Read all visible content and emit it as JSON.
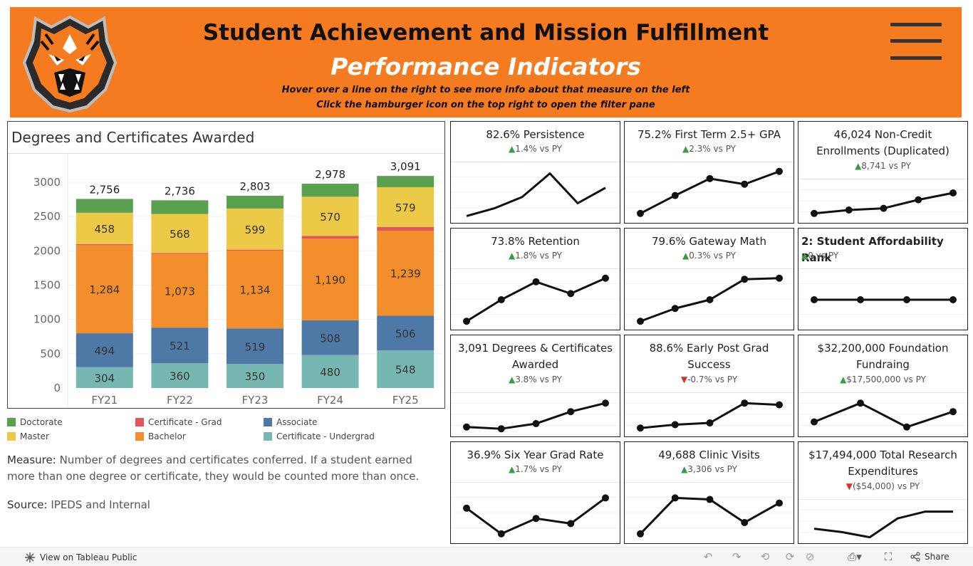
{
  "header": {
    "title": "Student Achievement and Mission Fulfillment",
    "subtitle": "Performance Indicators",
    "instruction_1": "Hover over a line on the right to see more info about that measure on the left",
    "instruction_2": "Click the hamburger icon on the top right to open the filter pane",
    "brand_color": "#F47B20"
  },
  "chart_data": {
    "type": "bar",
    "stacked": true,
    "title": "Degrees and Certificates Awarded",
    "categories": [
      "FY21",
      "FY22",
      "FY23",
      "FY24",
      "FY25"
    ],
    "ylim": [
      0,
      3300
    ],
    "yticks": [
      0,
      500,
      1000,
      1500,
      2000,
      2500,
      3000
    ],
    "totals": [
      "2,756",
      "2,736",
      "2,803",
      "2,978",
      "3,091"
    ],
    "series": [
      {
        "name": "Certificate - Undergrad",
        "color": "#76B7B2",
        "values": [
          304,
          360,
          350,
          480,
          548
        ],
        "labels": [
          "304",
          "360",
          "350",
          "480",
          "548"
        ]
      },
      {
        "name": "Associate",
        "color": "#4E79A7",
        "values": [
          494,
          521,
          519,
          508,
          506
        ],
        "labels": [
          "494",
          "521",
          "519",
          "508",
          "506"
        ]
      },
      {
        "name": "Bachelor",
        "color": "#F28E2B",
        "values": [
          1284,
          1073,
          1134,
          1190,
          1239
        ],
        "labels": [
          "1,284",
          "1,073",
          "1,134",
          "1,190",
          "1,239"
        ]
      },
      {
        "name": "Certificate - Grad",
        "color": "#E15759",
        "values": [
          15,
          15,
          14,
          40,
          55
        ],
        "labels": [
          "",
          "",
          "",
          "",
          ""
        ]
      },
      {
        "name": "Master",
        "color": "#EDC948",
        "values": [
          458,
          568,
          599,
          570,
          579
        ],
        "labels": [
          "458",
          "568",
          "599",
          "570",
          "579"
        ]
      },
      {
        "name": "Doctorate",
        "color": "#59A14F",
        "values": [
          201,
          199,
          187,
          190,
          164
        ],
        "labels": [
          "",
          "",
          "",
          "",
          ""
        ]
      }
    ]
  },
  "legend": [
    {
      "label": "Doctorate",
      "color": "#59A14F"
    },
    {
      "label": "Master",
      "color": "#EDC948"
    },
    {
      "label": "Certificate - Grad",
      "color": "#E15759"
    },
    {
      "label": "Bachelor",
      "color": "#F28E2B"
    },
    {
      "label": "Associate",
      "color": "#4E79A7"
    },
    {
      "label": "Certificate - Undergrad",
      "color": "#76B7B2"
    }
  ],
  "measure": {
    "label": "Measure:",
    "text": "Number of degrees and certificates conferred. If a student earned more than one degree or certificate, they would be counted more than once."
  },
  "source": {
    "label": "Source:",
    "text": "IPEDS and Internal"
  },
  "kpis": [
    {
      "title": "82.6% Persistence",
      "arrow": "▲",
      "direction": "up",
      "delta": "1.4% vs PY",
      "series": [
        0.05,
        0.2,
        0.42,
        0.88,
        0.3,
        0.6
      ],
      "dots": false
    },
    {
      "title": "75.2% First Term 2.5+ GPA",
      "arrow": "▲",
      "direction": "up",
      "delta": "2.3% vs PY",
      "series": [
        0.1,
        0.45,
        0.78,
        0.67,
        0.92
      ],
      "dots": true
    },
    {
      "title": "46,024 Non-Credit Enrollments (Duplicated)",
      "arrow": "▲",
      "direction": "up",
      "delta": "8,741 vs PY",
      "series": [
        0.15,
        0.25,
        0.3,
        0.55,
        0.75
      ],
      "dots": true
    },
    {
      "title": "73.8% Retention",
      "arrow": "▲",
      "direction": "up",
      "delta": "1.8% vs PY",
      "series": [
        0.08,
        0.5,
        0.85,
        0.62,
        0.92
      ],
      "dots": true
    },
    {
      "title": "79.6% Gateway Math",
      "arrow": "▲",
      "direction": "up",
      "delta": "0.3% vs PY",
      "series": [
        0.08,
        0.33,
        0.5,
        0.9,
        0.92
      ],
      "dots": true
    },
    {
      "title": "2: Student Affordability Rank",
      "arrow": "▲",
      "direction": "up",
      "delta": "0 vs PY",
      "series": [
        0.5,
        0.5,
        0.5,
        0.5
      ],
      "dots": true,
      "align": "left"
    },
    {
      "title": "3,091 Degrees & Certificates Awarded",
      "arrow": "▲",
      "direction": "up",
      "delta": "3.8% vs PY",
      "series": [
        0.15,
        0.1,
        0.25,
        0.6,
        0.85
      ],
      "dots": true
    },
    {
      "title": "88.6% Early Post Grad Success",
      "arrow": "▼",
      "direction": "down",
      "delta": "-0.7% vs PY",
      "series": [
        0.12,
        0.22,
        0.27,
        0.85,
        0.8
      ],
      "dots": true
    },
    {
      "title": "$32,200,000 Foundation Fundraing",
      "arrow": "▲",
      "direction": "up",
      "delta": "$17,500,000 vs PY",
      "series": [
        0.3,
        0.85,
        0.15,
        0.6
      ],
      "dots": true
    },
    {
      "title": "36.9% Six Year Grad Rate",
      "arrow": "▲",
      "direction": "up",
      "delta": "1.7% vs PY",
      "series": [
        0.6,
        0.1,
        0.4,
        0.3,
        0.8
      ],
      "dots": true
    },
    {
      "title": "49,688 Clinic Visits",
      "arrow": "▲",
      "direction": "up",
      "delta": "3,306 vs PY",
      "series": [
        0.1,
        0.8,
        0.77,
        0.32,
        0.7
      ],
      "dots": true
    },
    {
      "title": "$17,494,000 Total Research Expenditures",
      "arrow": "▼",
      "direction": "down",
      "delta": "($54,000) vs PY",
      "series": [
        0.3,
        0.2,
        0.05,
        0.6,
        0.8,
        0.8
      ],
      "dots": false
    }
  ],
  "footer": {
    "view_link": "View on Tableau Public",
    "share_label": "Share"
  }
}
